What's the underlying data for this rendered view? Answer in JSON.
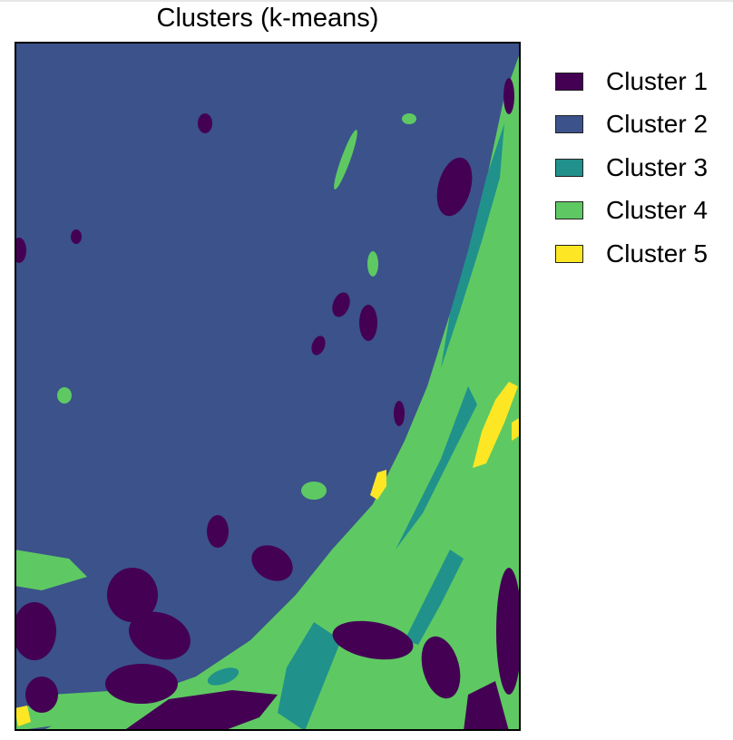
{
  "chart_data": {
    "type": "heatmap",
    "title": "Clusters (k-means)",
    "legend_position": "right",
    "axes_visible": false,
    "clusters": [
      {
        "name": "Cluster 1",
        "color": "#440154"
      },
      {
        "name": "Cluster 2",
        "color": "#3b528b"
      },
      {
        "name": "Cluster 3",
        "color": "#21918c"
      },
      {
        "name": "Cluster 4",
        "color": "#5ec962"
      },
      {
        "name": "Cluster 5",
        "color": "#fde725"
      }
    ]
  }
}
